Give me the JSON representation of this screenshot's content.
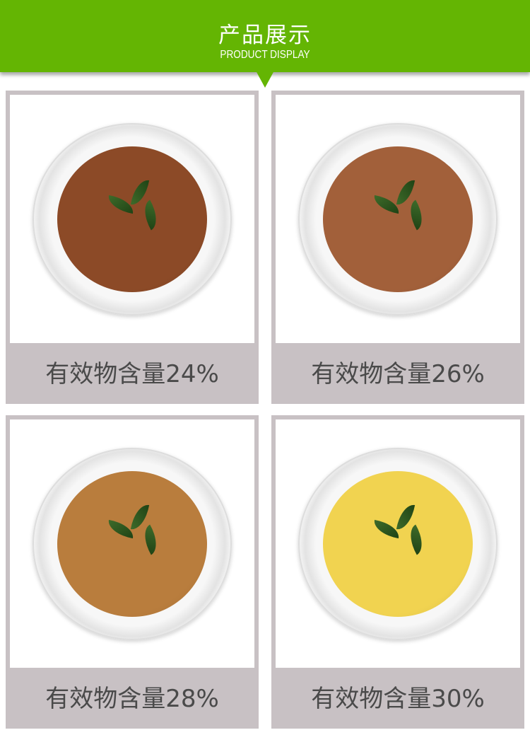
{
  "header": {
    "title": "产品展示",
    "subtitle": "PRODUCT DISPLAY",
    "color": "#64b503"
  },
  "products": [
    {
      "caption": "有效物含量24%",
      "powder_color": "#8c4a27",
      "icon": "powder-plate-image"
    },
    {
      "caption": "有效物含量26%",
      "powder_color": "#a2603a",
      "icon": "powder-plate-image"
    },
    {
      "caption": "有效物含量28%",
      "powder_color": "#b97d3d",
      "icon": "powder-plate-image"
    },
    {
      "caption": "有效物含量30%",
      "powder_color": "#f1d350",
      "icon": "powder-plate-image"
    }
  ]
}
